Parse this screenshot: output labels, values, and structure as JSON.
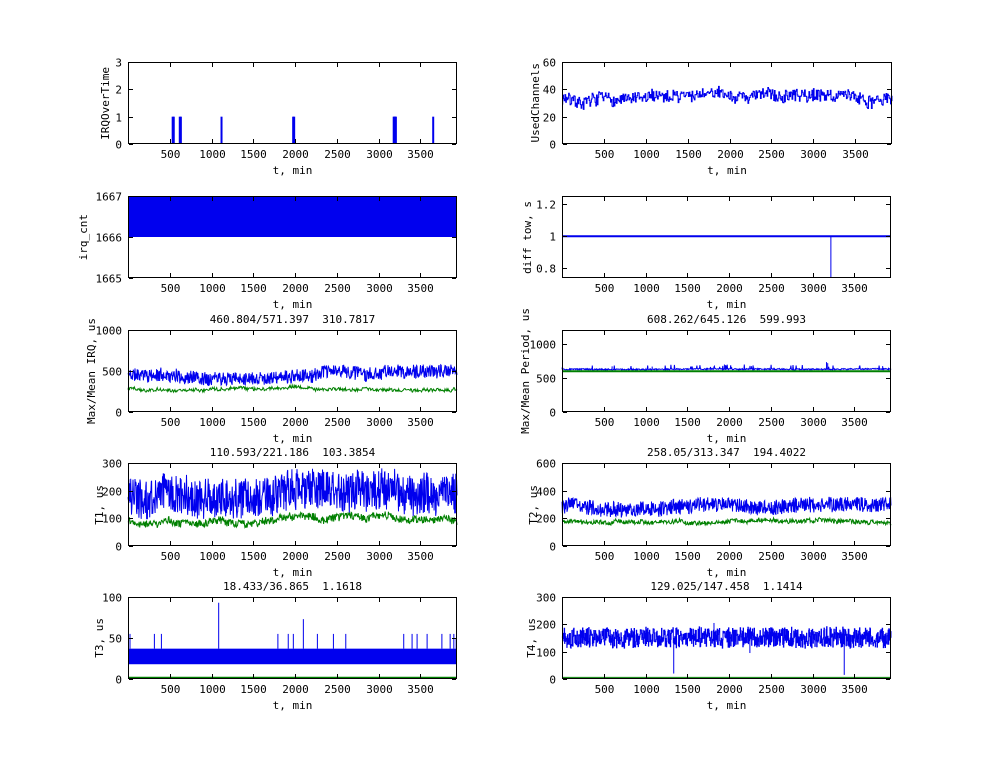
{
  "colors": {
    "blue": "#0000ee",
    "green": "#008000",
    "axis": "#000000",
    "text": "#000000",
    "background": "#ffffff"
  },
  "chart_data": [
    {
      "type": "line",
      "title": "",
      "ylabel": "IRQOverTime",
      "xlabel": "t, min",
      "xlim": [
        0,
        3940
      ],
      "ylim": [
        0,
        3
      ],
      "xticks": [
        500,
        1000,
        1500,
        2000,
        2500,
        3000,
        3500
      ],
      "yticks": [
        0,
        1,
        2,
        3
      ],
      "grid": false,
      "series": [
        {
          "name": "IRQOverTime",
          "kind": "spikes",
          "color": "blue",
          "base": 0,
          "width": 2,
          "points": [
            [
              535,
              1
            ],
            [
              548,
              1
            ],
            [
              620,
              1
            ],
            [
              633,
              1
            ],
            [
              1120,
              1
            ],
            [
              1978,
              1
            ],
            [
              1990,
              1
            ],
            [
              3182,
              1
            ],
            [
              3190,
              1
            ],
            [
              3199,
              1
            ],
            [
              3208,
              1
            ],
            [
              3655,
              1
            ]
          ]
        }
      ]
    },
    {
      "type": "line",
      "title": "",
      "ylabel": "UsedChannels",
      "xlabel": "t, min",
      "xlim": [
        0,
        3940
      ],
      "ylim": [
        0,
        60
      ],
      "xticks": [
        500,
        1000,
        1500,
        2000,
        2500,
        3000,
        3500
      ],
      "yticks": [
        0,
        20,
        40,
        60
      ],
      "grid": false,
      "series": [
        {
          "name": "UsedChannels",
          "kind": "noise",
          "color": "blue",
          "mean": 34,
          "jitter": 4.5,
          "wander": 5,
          "n": 450,
          "seed": 7,
          "clip": [
            20,
            46
          ],
          "step": true
        }
      ]
    },
    {
      "type": "line",
      "title": "",
      "ylabel": "irq_cnt",
      "xlabel": "t, min",
      "xlim": [
        0,
        3940
      ],
      "ylim": [
        1665,
        1667
      ],
      "xticks": [
        500,
        1000,
        1500,
        2000,
        2500,
        3000,
        3500
      ],
      "yticks": [
        1665,
        1666,
        1667
      ],
      "grid": false,
      "series": [
        {
          "name": "irq_cnt",
          "kind": "band",
          "color": "blue",
          "low": 1666,
          "high": 1667
        }
      ]
    },
    {
      "type": "line",
      "title": "",
      "ylabel": "diff tow, s",
      "xlabel": "t, min",
      "xlim": [
        0,
        3940
      ],
      "ylim": [
        0.74,
        1.25
      ],
      "xticks": [
        500,
        1000,
        1500,
        2000,
        2500,
        3000,
        3500
      ],
      "yticks": [
        0.8,
        1,
        1.2
      ],
      "grid": false,
      "series": [
        {
          "name": "diff tow dropouts",
          "kind": "spikes",
          "color": "blue",
          "base": 1,
          "width": 1,
          "points": [
            [
              3220,
              0.74
            ]
          ]
        },
        {
          "name": "diff tow",
          "kind": "hline",
          "color": "blue",
          "value": 1,
          "width": 2
        }
      ]
    },
    {
      "type": "line",
      "title": "460.804/571.397  310.7817",
      "ylabel": "Max/Mean IRQ, us",
      "xlabel": "t, min",
      "xlim": [
        0,
        3940
      ],
      "ylim": [
        0,
        1000
      ],
      "xticks": [
        500,
        1000,
        1500,
        2000,
        2500,
        3000,
        3500
      ],
      "yticks": [
        0,
        500,
        1000
      ],
      "grid": false,
      "series": [
        {
          "name": "max IRQ",
          "kind": "noise",
          "color": "blue",
          "mean": 455,
          "jitter": 80,
          "wander": 50,
          "n": 750,
          "seed": 11,
          "clip": [
            305,
            740
          ]
        },
        {
          "name": "mean IRQ",
          "kind": "noise",
          "color": "green",
          "mean": 292,
          "jitter": 20,
          "wander": 30,
          "n": 520,
          "seed": 12,
          "clip": [
            235,
            360
          ]
        }
      ]
    },
    {
      "type": "line",
      "title": "608.262/645.126  599.993",
      "ylabel": "Max/Mean Period, us",
      "xlabel": "t, min",
      "xlim": [
        0,
        3940
      ],
      "ylim": [
        0,
        1200
      ],
      "xticks": [
        500,
        1000,
        1500,
        2000,
        2500,
        3000,
        3500
      ],
      "yticks": [
        0,
        500,
        1000
      ],
      "grid": false,
      "series": [
        {
          "name": "max period",
          "kind": "noise",
          "color": "blue",
          "mean": 627,
          "jitter": 9,
          "wander": 5,
          "n": 750,
          "seed": 13,
          "clip": [
            612,
            755
          ],
          "spikeProb": 0.04,
          "spikeAmp": 70
        },
        {
          "name": "period spikes",
          "kind": "spikes",
          "color": "blue",
          "base": 630,
          "width": 1,
          "points": [
            [
              600,
              668
            ],
            [
              1080,
              665
            ],
            [
              1945,
              695
            ],
            [
              1958,
              685
            ],
            [
              2270,
              670
            ],
            [
              3168,
              730
            ],
            [
              3182,
              715
            ],
            [
              3560,
              668
            ],
            [
              3840,
              672
            ]
          ]
        },
        {
          "name": "mean period",
          "kind": "hline",
          "color": "green",
          "value": 597,
          "width": 2
        }
      ]
    },
    {
      "type": "line",
      "title": "110.593/221.186  103.3854",
      "ylabel": "T1, us",
      "xlabel": "t, min",
      "xlim": [
        0,
        3940
      ],
      "ylim": [
        0,
        300
      ],
      "xticks": [
        500,
        1000,
        1500,
        2000,
        2500,
        3000,
        3500
      ],
      "yticks": [
        0,
        100,
        200,
        300
      ],
      "grid": false,
      "series": [
        {
          "name": "T1 max",
          "kind": "noise",
          "color": "blue",
          "mean": 185,
          "jitter": 75,
          "wander": 22,
          "n": 850,
          "seed": 21,
          "clip": [
            98,
            300
          ]
        },
        {
          "name": "T1 mean",
          "kind": "noise",
          "color": "green",
          "mean": 95,
          "jitter": 14,
          "wander": 16,
          "n": 620,
          "seed": 22,
          "clip": [
            58,
            138
          ]
        }
      ]
    },
    {
      "type": "line",
      "title": "258.05/313.347  194.4022",
      "ylabel": "T2, us",
      "xlabel": "t, min",
      "xlim": [
        0,
        3940
      ],
      "ylim": [
        0,
        600
      ],
      "xticks": [
        500,
        1000,
        1500,
        2000,
        2500,
        3000,
        3500
      ],
      "yticks": [
        0,
        200,
        400,
        600
      ],
      "grid": false,
      "series": [
        {
          "name": "T2 max",
          "kind": "noise",
          "color": "blue",
          "mean": 282,
          "jitter": 55,
          "wander": 22,
          "n": 850,
          "seed": 31,
          "clip": [
            188,
            430
          ]
        },
        {
          "name": "T2 mean",
          "kind": "noise",
          "color": "green",
          "mean": 180,
          "jitter": 16,
          "wander": 16,
          "n": 620,
          "seed": 32,
          "clip": [
            136,
            232
          ]
        }
      ]
    },
    {
      "type": "line",
      "title": "18.433/36.865  1.1618",
      "ylabel": "T3, us",
      "xlabel": "t, min",
      "xlim": [
        0,
        3940
      ],
      "ylim": [
        0,
        100
      ],
      "xticks": [
        500,
        1000,
        1500,
        2000,
        2500,
        3000,
        3500
      ],
      "yticks": [
        0,
        50,
        100
      ],
      "grid": false,
      "series": [
        {
          "name": "T3 band",
          "kind": "band",
          "color": "blue",
          "low": 18,
          "high": 37
        },
        {
          "name": "T3 spikes",
          "kind": "spikes",
          "color": "blue",
          "base": 37,
          "width": 1,
          "points": [
            [
              24,
              55
            ],
            [
              316,
              55
            ],
            [
              400,
              55
            ],
            [
              1086,
              93
            ],
            [
              1795,
              55
            ],
            [
              1919,
              55
            ],
            [
              1980,
              55
            ],
            [
              2100,
              73
            ],
            [
              2268,
              55
            ],
            [
              2460,
              55
            ],
            [
              2608,
              55
            ],
            [
              3302,
              55
            ],
            [
              3402,
              55
            ],
            [
              3462,
              55
            ],
            [
              3582,
              55
            ],
            [
              3759,
              55
            ],
            [
              3858,
              55
            ],
            [
              3902,
              55
            ],
            [
              3930,
              50
            ]
          ]
        },
        {
          "name": "T3 mean",
          "kind": "hline",
          "color": "green",
          "value": 1.5,
          "width": 2
        }
      ]
    },
    {
      "type": "line",
      "title": "129.025/147.458  1.1414",
      "ylabel": "T4, us",
      "xlabel": "t, min",
      "xlim": [
        0,
        3940
      ],
      "ylim": [
        0,
        300
      ],
      "xticks": [
        500,
        1000,
        1500,
        2000,
        2500,
        3000,
        3500
      ],
      "yticks": [
        0,
        100,
        200,
        300
      ],
      "grid": false,
      "series": [
        {
          "name": "T4",
          "kind": "noise",
          "color": "blue",
          "mean": 150,
          "jitter": 37,
          "wander": 5,
          "n": 900,
          "seed": 41,
          "clip": [
            113,
            191
          ],
          "step": true
        },
        {
          "name": "T4 outliers",
          "kind": "spikes",
          "color": "blue",
          "base": 150,
          "width": 1,
          "points": [
            [
              1338,
              20
            ],
            [
              1820,
              205
            ],
            [
              2250,
              95
            ],
            [
              3380,
              15
            ]
          ]
        },
        {
          "name": "T4 mean",
          "kind": "hline",
          "color": "green",
          "value": 6,
          "width": 1
        }
      ]
    }
  ]
}
